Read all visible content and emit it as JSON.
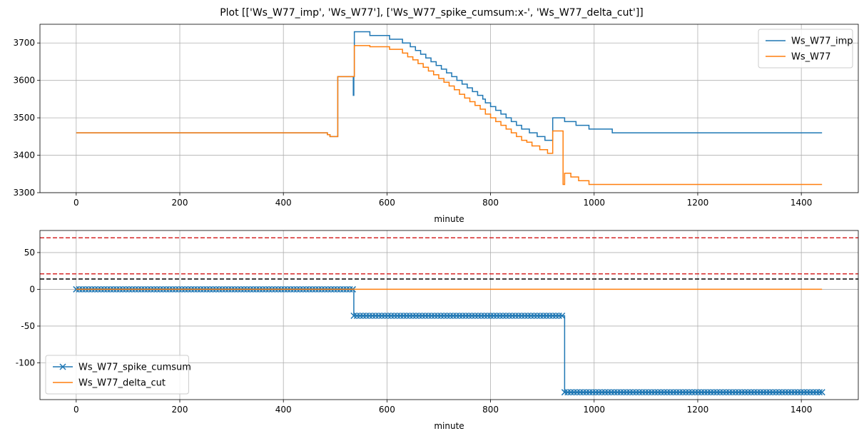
{
  "figure": {
    "title": "Plot [['Ws_W77_imp', 'Ws_W77'], ['Ws_W77_spike_cumsum:x-', 'Ws_W77_delta_cut']]"
  },
  "colors": {
    "blue": "#1f77b4",
    "orange": "#ff7f0e",
    "red": "#d62728",
    "black": "#000000",
    "grid": "#b0b0b0"
  },
  "chart_data": [
    {
      "type": "line",
      "xlabel": "minute",
      "ylabel": "",
      "xlim": [
        -70,
        1510
      ],
      "ylim": [
        3300,
        3750
      ],
      "xticks": [
        0,
        200,
        400,
        600,
        800,
        1000,
        1200,
        1400
      ],
      "yticks": [
        3300,
        3400,
        3500,
        3600,
        3700
      ],
      "grid": true,
      "legend": "top-right",
      "series": [
        {
          "name": "Ws_W77_imp",
          "color": "#1f77b4",
          "step": true,
          "x": [
            0,
            485,
            490,
            505,
            535,
            536,
            537,
            567,
            605,
            630,
            645,
            655,
            665,
            675,
            685,
            695,
            705,
            715,
            725,
            735,
            745,
            755,
            765,
            775,
            785,
            790,
            800,
            810,
            820,
            830,
            840,
            850,
            860,
            875,
            890,
            905,
            920,
            930,
            943,
            955,
            965,
            970,
            990,
            1035,
            1440
          ],
          "y": [
            3460,
            3455,
            3450,
            3610,
            3560,
            3610,
            3730,
            3720,
            3710,
            3700,
            3690,
            3680,
            3670,
            3660,
            3650,
            3640,
            3630,
            3620,
            3610,
            3600,
            3590,
            3580,
            3570,
            3560,
            3550,
            3540,
            3530,
            3520,
            3510,
            3500,
            3490,
            3480,
            3470,
            3460,
            3450,
            3440,
            3500,
            3500,
            3490,
            3490,
            3480,
            3480,
            3470,
            3460,
            3460
          ]
        },
        {
          "name": "Ws_W77",
          "color": "#ff7f0e",
          "step": true,
          "x": [
            0,
            485,
            490,
            505,
            535,
            537,
            567,
            605,
            630,
            640,
            650,
            660,
            670,
            680,
            690,
            700,
            710,
            720,
            730,
            740,
            750,
            760,
            770,
            780,
            790,
            800,
            810,
            820,
            830,
            840,
            850,
            860,
            870,
            880,
            895,
            910,
            920,
            935,
            940,
            943,
            955,
            970,
            990,
            1035,
            1440
          ],
          "y": [
            3460,
            3455,
            3450,
            3610,
            3610,
            3693,
            3690,
            3683,
            3673,
            3663,
            3655,
            3645,
            3635,
            3625,
            3615,
            3605,
            3595,
            3585,
            3575,
            3563,
            3553,
            3543,
            3533,
            3523,
            3510,
            3500,
            3490,
            3480,
            3470,
            3460,
            3450,
            3440,
            3435,
            3425,
            3415,
            3405,
            3465,
            3465,
            3322,
            3352,
            3342,
            3332,
            3322,
            3322,
            3322
          ]
        }
      ]
    },
    {
      "type": "line",
      "xlabel": "minute",
      "ylabel": "",
      "xlim": [
        -70,
        1510
      ],
      "ylim": [
        -150,
        80
      ],
      "xticks": [
        0,
        200,
        400,
        600,
        800,
        1000,
        1200,
        1400
      ],
      "yticks": [
        -100,
        -50,
        0,
        50
      ],
      "grid": true,
      "legend": "bottom-left",
      "series": [
        {
          "name": "Ws_W77_spike_cumsum",
          "color": "#1f77b4",
          "marker": "x",
          "step": true,
          "x": [
            0,
            536,
            943,
            1440
          ],
          "y": [
            0,
            -36,
            -140,
            -140
          ]
        },
        {
          "name": "Ws_W77_delta_cut",
          "color": "#ff7f0e",
          "step": false,
          "x": [
            0,
            1440
          ],
          "y": [
            0,
            0
          ]
        }
      ],
      "hlines": [
        {
          "y": 70,
          "color": "#d62728",
          "style": "dashed"
        },
        {
          "y": 21,
          "color": "#d62728",
          "style": "dashed"
        },
        {
          "y": 14,
          "color": "#000000",
          "style": "dashed"
        }
      ]
    }
  ]
}
